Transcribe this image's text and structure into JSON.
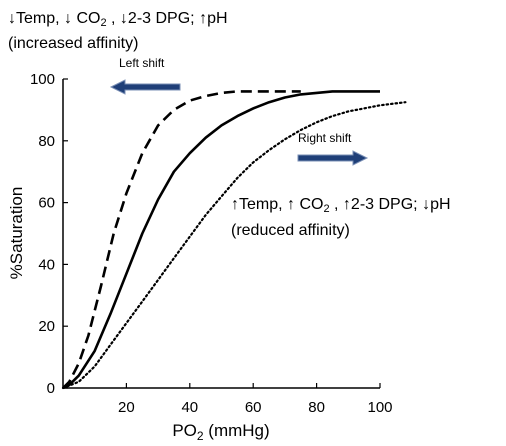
{
  "chart_data": {
    "type": "line",
    "title": "",
    "xlabel": {
      "main": "PO",
      "sub": "2",
      "unit": " (mmHg)"
    },
    "ylabel": "%Saturation",
    "xlim": [
      0,
      100
    ],
    "ylim": [
      0,
      100
    ],
    "xticks": [
      "20",
      "40",
      "60",
      "80",
      "100"
    ],
    "yticks": [
      "0",
      "20",
      "40",
      "60",
      "80",
      "100"
    ],
    "grid": false,
    "series": [
      {
        "style": "dashed",
        "x": [
          0,
          2,
          5,
          8,
          12,
          16,
          20,
          25,
          30,
          35,
          40,
          45,
          50,
          55,
          60,
          65,
          70,
          75
        ],
        "y": [
          0,
          2,
          8,
          17,
          33,
          50,
          63,
          76,
          85,
          90,
          93,
          94.5,
          95.5,
          96,
          96,
          96,
          96,
          96
        ]
      },
      {
        "style": "solid",
        "x": [
          0,
          2,
          5,
          10,
          15,
          20,
          25,
          30,
          35,
          40,
          45,
          50,
          55,
          60,
          65,
          70,
          75,
          80,
          85,
          90,
          95,
          100
        ],
        "y": [
          0,
          1,
          4,
          12,
          24,
          37,
          50,
          61,
          70,
          76,
          81,
          85,
          88,
          90.5,
          92.5,
          94,
          95,
          95.5,
          96,
          96,
          96,
          96
        ]
      },
      {
        "style": "dotted",
        "x": [
          0,
          5,
          10,
          15,
          20,
          25,
          30,
          35,
          40,
          45,
          50,
          55,
          60,
          65,
          70,
          75,
          80,
          85,
          90,
          95,
          100,
          108
        ],
        "y": [
          0,
          2,
          7,
          14,
          21,
          28,
          35,
          42,
          49,
          56,
          62,
          68,
          73,
          77,
          80.5,
          83.5,
          86,
          88,
          89.5,
          90.5,
          91.5,
          92.5
        ]
      }
    ],
    "annotations": {
      "left_condition": {
        "parts": [
          "↓Temp, ↓ CO",
          "2",
          " , ↓2-3 DPG; ↑pH"
        ]
      },
      "left_effect": "(increased affinity)",
      "right_condition": {
        "parts": [
          "↑Temp, ↑ CO",
          "2",
          " , ↑2-3 DPG; ↓pH"
        ]
      },
      "right_effect": "(reduced affinity)",
      "left_arrow_label": "Left shift",
      "right_arrow_label": "Right shift"
    },
    "colors": {
      "curves": "#000000",
      "arrow_fill": "#1F3F78",
      "arrow_edge": "#7A8FB5"
    }
  }
}
